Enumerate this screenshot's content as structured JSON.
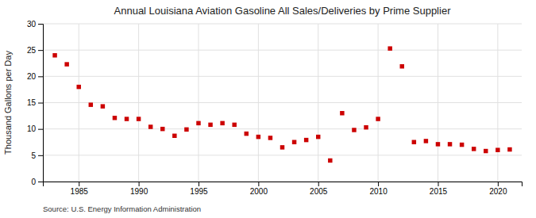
{
  "chart_data": {
    "type": "scatter",
    "title": "Annual Louisiana Aviation Gasoline All Sales/Deliveries by Prime Supplier",
    "y_label": "Thousand Gallons per Day",
    "annotations": [
      "Source: U.S. Energy Information Administration"
    ],
    "x": [
      1983,
      1984,
      1985,
      1986,
      1987,
      1988,
      1989,
      1990,
      1991,
      1992,
      1993,
      1994,
      1995,
      1996,
      1997,
      1998,
      1999,
      2000,
      2001,
      2002,
      2003,
      2004,
      2005,
      2006,
      2007,
      2008,
      2009,
      2010,
      2011,
      2012,
      2013,
      2014,
      2015,
      2016,
      2017,
      2018,
      2019,
      2020,
      2021
    ],
    "values": [
      24.0,
      22.3,
      18.0,
      14.6,
      14.3,
      12.1,
      11.9,
      11.9,
      10.4,
      10.0,
      8.7,
      9.9,
      11.1,
      10.8,
      11.1,
      10.8,
      9.1,
      8.5,
      8.3,
      6.5,
      7.5,
      7.9,
      8.5,
      4.0,
      13.0,
      9.8,
      10.3,
      11.9,
      25.3,
      21.9,
      7.5,
      7.7,
      7.1,
      7.1,
      7.0,
      6.2,
      5.8,
      6.0,
      6.1
    ],
    "color": "#cc0000",
    "marker": "square",
    "xlim": [
      1982,
      2022
    ],
    "ylim": [
      0,
      30
    ],
    "xticks": [
      1985,
      1990,
      1995,
      2000,
      2005,
      2010,
      2015,
      2020
    ],
    "yticks": [
      0,
      5,
      10,
      15,
      20,
      25,
      30
    ],
    "grid": true
  }
}
